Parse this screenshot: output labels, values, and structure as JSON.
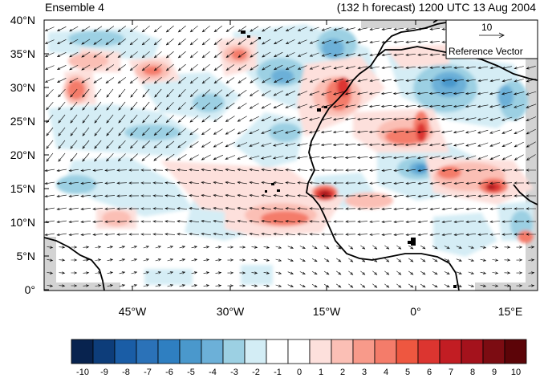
{
  "header": {
    "ensemble_label": "Ensemble 4",
    "forecast_label": "(132 h forecast) 1200 UTC 13 Aug 2004"
  },
  "map": {
    "lat_labels": [
      "40°N",
      "35°N",
      "30°N",
      "25°N",
      "20°N",
      "15°N",
      "10°N",
      "5°N",
      "0°"
    ],
    "lon_labels": [
      "45°W",
      "30°W",
      "15°W",
      "0°",
      "15°E"
    ],
    "lon_range": [
      -58,
      20
    ],
    "lat_range": [
      0,
      40
    ],
    "reference_vector": {
      "value_label": "10",
      "caption": "Reference Vector"
    },
    "coastline_color": "#000000",
    "land_color": "#d3d3d3"
  },
  "colorbar": {
    "levels": [
      "-10",
      "-9",
      "-8",
      "-7",
      "-6",
      "-5",
      "-4",
      "-3",
      "-2",
      "-1",
      "0",
      "1",
      "2",
      "3",
      "4",
      "5",
      "6",
      "7",
      "8",
      "9",
      "10"
    ],
    "colors": [
      "#08234f",
      "#0d3d7a",
      "#1a5da6",
      "#2b72b8",
      "#2f7fc1",
      "#4a98cc",
      "#6cb0d8",
      "#9cd0e3",
      "#d3edf5",
      "#ffffff",
      "#ffffff",
      "#fde0dc",
      "#fbbfb5",
      "#f89a8a",
      "#f47c6a",
      "#ee5740",
      "#dc3530",
      "#c21d23",
      "#a4121c",
      "#7c0c12",
      "#5c0408"
    ]
  }
}
